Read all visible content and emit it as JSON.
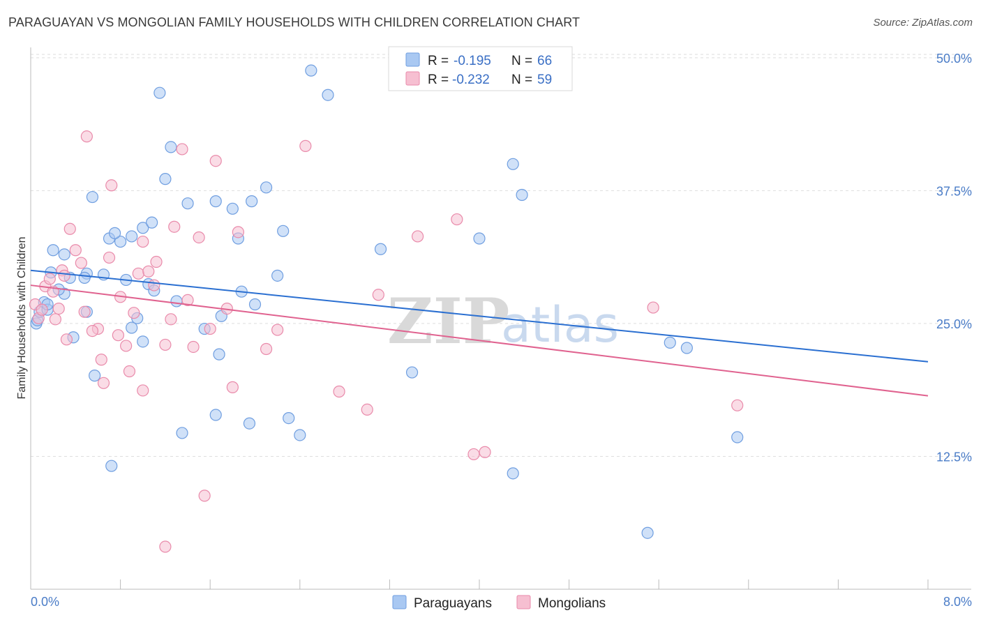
{
  "title": "PARAGUAYAN VS MONGOLIAN FAMILY HOUSEHOLDS WITH CHILDREN CORRELATION CHART",
  "source": "Source: ZipAtlas.com",
  "colors": {
    "paraguayans_fill": "#a9c8f2",
    "paraguayans_stroke": "#6f9ee0",
    "paraguayans_line": "#2a6fd1",
    "mongolians_fill": "#f6bfd1",
    "mongolians_stroke": "#e98aaa",
    "mongolians_line": "#e0628f",
    "tick_label": "#4a7cc7",
    "grid": "#dedede"
  },
  "watermark": {
    "zip": "ZIP",
    "atlas": "atlas"
  },
  "legend": {
    "rows": [
      {
        "r_label": "R =",
        "r_value": "-0.195",
        "n_label": "N =",
        "n_value": "66"
      },
      {
        "r_label": "R =",
        "r_value": "-0.232",
        "n_label": "N =",
        "n_value": "59"
      }
    ]
  },
  "chart_data": {
    "type": "scatter",
    "title": "PARAGUAYAN VS MONGOLIAN FAMILY HOUSEHOLDS WITH CHILDREN CORRELATION CHART",
    "xlabel": "",
    "ylabel": "Family Households with Children",
    "xlim": [
      0,
      8
    ],
    "ylim": [
      0,
      51.5
    ],
    "x_tick_labels": [
      "0.0%",
      "8.0%"
    ],
    "y_ticks": [
      12.5,
      25.0,
      37.5,
      50.0
    ],
    "y_tick_labels": [
      "12.5%",
      "25.0%",
      "37.5%",
      "50.0%"
    ],
    "grid": true,
    "legend_position": "top-center",
    "series": [
      {
        "name": "Paraguayans",
        "r": -0.195,
        "n": 66,
        "trend": {
          "x": [
            0,
            8
          ],
          "y": [
            30.0,
            21.4
          ]
        },
        "points": [
          [
            0.05,
            25.0
          ],
          [
            0.06,
            25.3
          ],
          [
            0.08,
            26.1
          ],
          [
            0.12,
            27.0
          ],
          [
            0.15,
            26.3
          ],
          [
            0.18,
            29.8
          ],
          [
            0.3,
            27.8
          ],
          [
            0.25,
            28.2
          ],
          [
            0.3,
            31.5
          ],
          [
            0.2,
            31.9
          ],
          [
            0.5,
            29.7
          ],
          [
            0.48,
            29.3
          ],
          [
            0.5,
            26.1
          ],
          [
            0.38,
            23.7
          ],
          [
            0.57,
            20.1
          ],
          [
            0.55,
            36.9
          ],
          [
            0.7,
            33.0
          ],
          [
            0.8,
            32.7
          ],
          [
            0.75,
            33.5
          ],
          [
            0.85,
            29.1
          ],
          [
            0.9,
            24.6
          ],
          [
            0.95,
            25.5
          ],
          [
            1.0,
            23.3
          ],
          [
            1.0,
            34.0
          ],
          [
            1.05,
            28.7
          ],
          [
            1.1,
            28.1
          ],
          [
            1.08,
            34.5
          ],
          [
            1.2,
            38.6
          ],
          [
            1.25,
            41.6
          ],
          [
            1.15,
            46.7
          ],
          [
            1.3,
            27.1
          ],
          [
            1.4,
            36.3
          ],
          [
            1.55,
            24.5
          ],
          [
            1.68,
            22.1
          ],
          [
            1.65,
            36.5
          ],
          [
            1.7,
            25.7
          ],
          [
            1.8,
            35.8
          ],
          [
            1.85,
            33.0
          ],
          [
            1.88,
            28.0
          ],
          [
            2.0,
            26.8
          ],
          [
            2.1,
            37.8
          ],
          [
            2.2,
            29.5
          ],
          [
            2.25,
            33.7
          ],
          [
            2.3,
            16.1
          ],
          [
            2.4,
            14.5
          ],
          [
            2.5,
            48.8
          ],
          [
            2.65,
            46.5
          ],
          [
            1.35,
            14.7
          ],
          [
            1.65,
            16.4
          ],
          [
            1.95,
            15.6
          ],
          [
            0.72,
            11.6
          ],
          [
            3.12,
            32.0
          ],
          [
            3.4,
            20.4
          ],
          [
            4.0,
            33.0
          ],
          [
            4.3,
            40.0
          ],
          [
            4.38,
            37.1
          ],
          [
            4.3,
            10.9
          ],
          [
            5.7,
            23.2
          ],
          [
            5.85,
            22.7
          ],
          [
            6.3,
            14.3
          ],
          [
            5.5,
            5.3
          ],
          [
            0.15,
            26.8
          ],
          [
            0.35,
            29.3
          ],
          [
            0.65,
            29.6
          ],
          [
            0.9,
            33.2
          ],
          [
            1.97,
            36.5
          ]
        ]
      },
      {
        "name": "Mongolians",
        "r": -0.232,
        "n": 59,
        "trend": {
          "x": [
            0,
            8
          ],
          "y": [
            28.6,
            18.2
          ]
        },
        "points": [
          [
            0.04,
            26.8
          ],
          [
            0.07,
            25.5
          ],
          [
            0.1,
            26.3
          ],
          [
            0.13,
            28.5
          ],
          [
            0.17,
            29.2
          ],
          [
            0.2,
            28.0
          ],
          [
            0.22,
            25.4
          ],
          [
            0.25,
            26.4
          ],
          [
            0.28,
            30.0
          ],
          [
            0.3,
            29.5
          ],
          [
            0.32,
            23.5
          ],
          [
            0.35,
            33.9
          ],
          [
            0.4,
            31.9
          ],
          [
            0.45,
            30.7
          ],
          [
            0.5,
            42.6
          ],
          [
            0.6,
            24.5
          ],
          [
            0.63,
            21.6
          ],
          [
            0.65,
            19.4
          ],
          [
            0.7,
            31.2
          ],
          [
            0.72,
            38.0
          ],
          [
            0.78,
            23.9
          ],
          [
            0.8,
            27.5
          ],
          [
            0.85,
            22.9
          ],
          [
            0.88,
            20.5
          ],
          [
            0.92,
            26.0
          ],
          [
            0.96,
            29.7
          ],
          [
            1.0,
            32.7
          ],
          [
            1.05,
            29.9
          ],
          [
            1.1,
            28.6
          ],
          [
            1.0,
            18.7
          ],
          [
            1.2,
            23.0
          ],
          [
            1.25,
            25.4
          ],
          [
            1.28,
            34.1
          ],
          [
            1.35,
            41.4
          ],
          [
            1.4,
            27.2
          ],
          [
            1.45,
            22.8
          ],
          [
            1.5,
            33.1
          ],
          [
            1.55,
            8.8
          ],
          [
            1.6,
            24.5
          ],
          [
            1.65,
            40.3
          ],
          [
            1.75,
            26.4
          ],
          [
            1.8,
            19.0
          ],
          [
            1.85,
            33.6
          ],
          [
            2.1,
            22.6
          ],
          [
            2.2,
            24.4
          ],
          [
            2.45,
            41.7
          ],
          [
            1.2,
            4.0
          ],
          [
            2.75,
            18.6
          ],
          [
            3.0,
            16.9
          ],
          [
            3.1,
            27.7
          ],
          [
            3.45,
            33.2
          ],
          [
            3.8,
            34.8
          ],
          [
            3.95,
            12.7
          ],
          [
            4.05,
            12.9
          ],
          [
            5.55,
            26.5
          ],
          [
            6.3,
            17.3
          ],
          [
            0.55,
            24.3
          ],
          [
            0.48,
            26.1
          ],
          [
            1.12,
            30.8
          ]
        ]
      }
    ]
  }
}
